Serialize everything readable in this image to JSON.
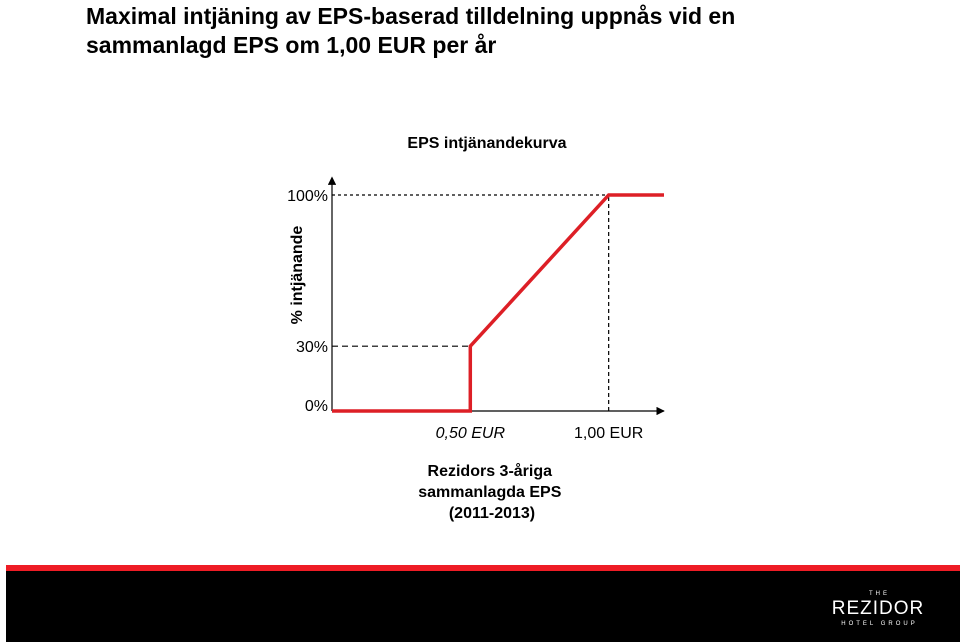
{
  "slide": {
    "title_line1": "Maximal intjäning av EPS-baserad tilldelning uppnås vid en",
    "title_line2": "sammanlagd EPS om 1,00 EUR per år"
  },
  "logo": {
    "top": "THE",
    "main": "REZIDOR",
    "bottom": "HOTEL GROUP"
  },
  "colors": {
    "curve": "#dd1f26",
    "accent": "#ee1c25",
    "footer": "#000000",
    "guide": "#000000"
  },
  "chart_data": {
    "type": "line",
    "title": "EPS intjänandekurva",
    "ylabel": "% intjänande",
    "xlabel_lines": [
      "Rezidors 3-åriga",
      "sammanlagda EPS",
      "(2011-2013)"
    ],
    "x_unit": "EUR",
    "y_unit": "%",
    "xlim": [
      0,
      1.2
    ],
    "ylim": [
      0,
      100
    ],
    "x_ticks": [
      {
        "value": 0.5,
        "label": "0,50 EUR",
        "italic": true
      },
      {
        "value": 1.0,
        "label": "1,00 EUR",
        "italic": false
      }
    ],
    "y_ticks": [
      {
        "value": 0,
        "label": "0%"
      },
      {
        "value": 30,
        "label": "30%"
      },
      {
        "value": 100,
        "label": "100%"
      }
    ],
    "series": [
      {
        "points": [
          {
            "x": 0,
            "y": 0
          },
          {
            "x": 0.5,
            "y": 0
          },
          {
            "x": 0.5,
            "y": 30
          },
          {
            "x": 1.0,
            "y": 100
          },
          {
            "x": 1.2,
            "y": 100
          }
        ]
      }
    ],
    "guides": [
      {
        "type": "horizontal",
        "y": 100,
        "x_from": 0,
        "x_to": 1.0
      },
      {
        "type": "horizontal",
        "y": 30,
        "x_from": 0,
        "x_to": 0.5
      },
      {
        "type": "vertical",
        "x": 1.0,
        "y_from": 0,
        "y_to": 100
      }
    ],
    "grid": false,
    "legend": "none"
  }
}
